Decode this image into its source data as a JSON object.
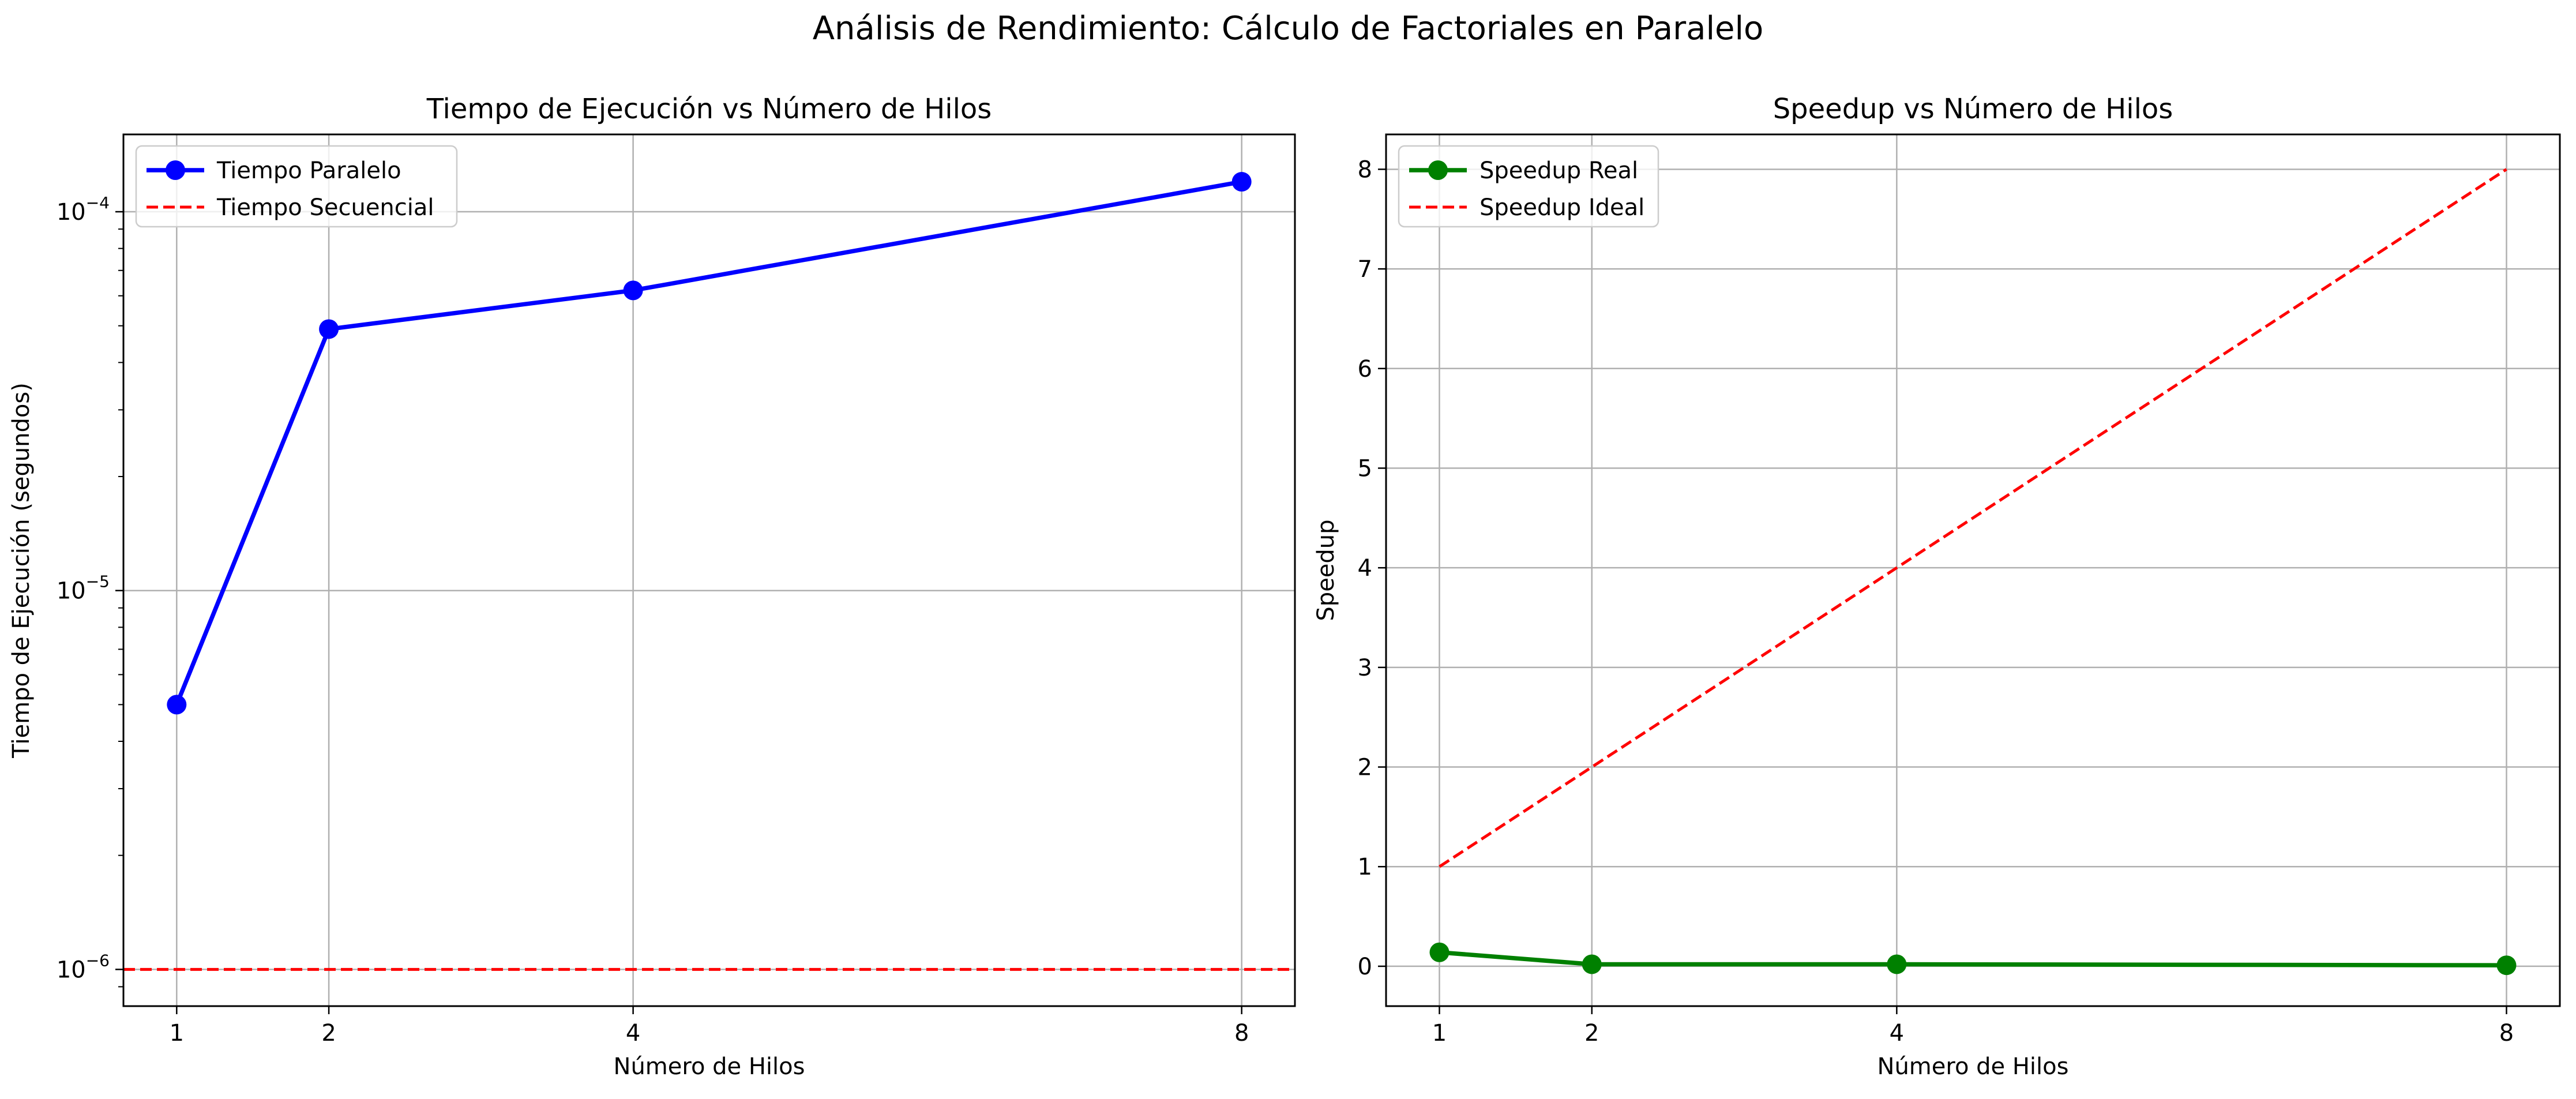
{
  "figure": {
    "suptitle": "Análisis de Rendimiento: Cálculo de Factoriales en Paralelo"
  },
  "colors": {
    "paralelo": "#0000ff",
    "secuencial": "#ff0000",
    "speedup_real": "#008000",
    "speedup_ideal": "#ff0000",
    "grid": "#b0b0b0"
  },
  "chart_data": [
    {
      "type": "line",
      "title": "Tiempo de Ejecución vs Número de Hilos",
      "xlabel": "Número de Hilos",
      "ylabel": "Tiempo de Ejecución (segundos)",
      "yscale": "log",
      "ylim": [
        8e-07,
        0.00016
      ],
      "xlim": [
        0.65,
        8.35
      ],
      "xticks": [
        1,
        2,
        4,
        8
      ],
      "yticks": [
        1e-06,
        1e-05,
        0.0001
      ],
      "ytick_labels": [
        [
          "10",
          "−6"
        ],
        [
          "10",
          "−5"
        ],
        [
          "10",
          "−4"
        ]
      ],
      "grid": true,
      "legend_position": "upper-left",
      "series": [
        {
          "name": "Tiempo Paralelo",
          "style": "solid-marker",
          "x": [
            1,
            2,
            4,
            8
          ],
          "values": [
            5e-06,
            4.9e-05,
            6.2e-05,
            0.00012
          ]
        },
        {
          "name": "Tiempo Secuencial",
          "style": "dashed-horizontal",
          "value": 1e-06
        }
      ]
    },
    {
      "type": "line",
      "title": "Speedup vs Número de Hilos",
      "xlabel": "Número de Hilos",
      "ylabel": "Speedup",
      "yscale": "linear",
      "ylim": [
        -0.4,
        8.35
      ],
      "xlim": [
        0.65,
        8.35
      ],
      "xticks": [
        1,
        2,
        4,
        8
      ],
      "yticks": [
        0,
        1,
        2,
        3,
        4,
        5,
        6,
        7,
        8
      ],
      "grid": true,
      "legend_position": "upper-left",
      "series": [
        {
          "name": "Speedup Real",
          "style": "solid-marker",
          "x": [
            1,
            2,
            4,
            8
          ],
          "values": [
            0.14,
            0.02,
            0.02,
            0.01
          ]
        },
        {
          "name": "Speedup Ideal",
          "style": "dashed",
          "x": [
            1,
            2,
            4,
            8
          ],
          "values": [
            1,
            2,
            4,
            8
          ]
        }
      ]
    }
  ]
}
